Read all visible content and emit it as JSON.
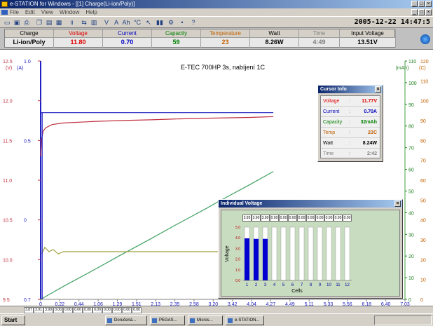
{
  "window": {
    "title": "e-STATION for Windows - [[1] Charge(Li-ion/Poly)]",
    "menu": [
      "File",
      "Edit",
      "View",
      "Window",
      "Help"
    ]
  },
  "toolbar": {
    "datetime": "2005-12-22 14:47:5"
  },
  "status": {
    "columns": [
      {
        "header": "Charge",
        "value": "Li-ion/Poly",
        "color": "#000000"
      },
      {
        "header": "Voltage",
        "value": "11.80",
        "color": "#e00000"
      },
      {
        "header": "Current",
        "value": "0.70",
        "color": "#0000c0"
      },
      {
        "header": "Capacity",
        "value": "59",
        "color": "#008000"
      },
      {
        "header": "Temperature",
        "value": "23",
        "color": "#c06000"
      },
      {
        "header": "Watt",
        "value": "8.26W",
        "color": "#000000"
      },
      {
        "header": "Time",
        "value": "4:49",
        "color": "#808080"
      },
      {
        "header": "Input Voltage",
        "value": "13.51V",
        "color": "#000000"
      }
    ]
  },
  "chart": {
    "title": "E-TEC 700HP 3s, nabíjení 1C",
    "left_unit_v": "(V)",
    "left_unit_a": "(A)",
    "right_unit_mah": "(mAh)",
    "right_unit_c": "(C)"
  },
  "chart_data": {
    "type": "line",
    "x_ticks": [
      "0",
      "0.22",
      "0.44",
      "1.06",
      "1.29",
      "1.51",
      "2.13",
      "2.35",
      "2.58",
      "3.20",
      "3.42",
      "4.04",
      "4.27",
      "4.49",
      "5.11",
      "5.33",
      "5.56",
      "6.18",
      "6.40",
      "7.03"
    ],
    "y_voltage_ticks": [
      "9.5",
      "10.0",
      "10.5",
      "11.0",
      "11.5",
      "12.0",
      "12.5"
    ],
    "y_voltage_range": [
      9.5,
      12.5
    ],
    "y_current_ticks": [
      "0.7",
      "0",
      "0.5",
      "1.0"
    ],
    "y_mah_ticks": [
      "0",
      "10",
      "20",
      "30",
      "40",
      "50",
      "60",
      "70",
      "80",
      "90",
      "100",
      "110"
    ],
    "y_mah_range": [
      0,
      110
    ],
    "y_temp_ticks": [
      "0",
      "10",
      "20",
      "30",
      "40",
      "50",
      "60",
      "70",
      "80",
      "90",
      "100",
      "110",
      "120"
    ],
    "series": [
      {
        "color": "#c03040",
        "x": [
          0,
          0.02,
          0.05,
          0.1,
          0.22,
          0.44,
          1.06,
          1.51,
          2.13,
          2.58,
          3.2,
          4.04,
          4.49
        ],
        "y": [
          11.3,
          11.52,
          11.62,
          11.66,
          11.7,
          11.72,
          11.74,
          11.75,
          11.76,
          11.77,
          11.78,
          11.79,
          11.8
        ]
      },
      {
        "color": "#2020c0",
        "x": [
          0,
          0.03,
          4.49
        ],
        "y": [
          0.7,
          0.7,
          0.7
        ]
      },
      {
        "color": "#40a060",
        "x": [
          0,
          0.22,
          0.44,
          1.06,
          1.51,
          2.13,
          2.58,
          3.2,
          3.42,
          4.04,
          4.49
        ],
        "y": [
          0,
          3,
          6,
          14,
          20,
          28,
          34,
          42,
          45,
          53,
          59
        ]
      },
      {
        "color": "#a0a040",
        "x": [
          0.02,
          0.08,
          0.16,
          0.24,
          0.34,
          0.44,
          0.7,
          1.06,
          1.51,
          2.13,
          2.58,
          3.2,
          4.04,
          4.49
        ],
        "y": [
          21,
          24,
          22,
          23,
          21,
          22,
          22,
          22,
          22,
          22,
          22,
          22,
          22,
          22
        ]
      }
    ]
  },
  "cursor_info": {
    "title": "Cursor Info",
    "rows": [
      {
        "label": "Voltage",
        "value": "11.77V",
        "color": "#e00000"
      },
      {
        "label": "Current",
        "value": "0.70A",
        "color": "#0000c0"
      },
      {
        "label": "Capacity",
        "value": "32mAh",
        "color": "#008000"
      },
      {
        "label": "Temp",
        "value": "23C",
        "color": "#c06000"
      },
      {
        "label": "Watt",
        "value": "8.24W",
        "color": "#000000"
      },
      {
        "label": "Time",
        "value": "2:42",
        "color": "#808080"
      }
    ]
  },
  "individual_voltage": {
    "title": "Individual Voltage",
    "ylabel": "Voltage",
    "xlabel": "Cells",
    "y_ticks": [
      "0.0",
      "1.0",
      "2.0",
      "3.0",
      "4.0",
      "5.0"
    ],
    "cell_labels": [
      "1",
      "2",
      "3",
      "4",
      "5",
      "6",
      "7",
      "8",
      "9",
      "10",
      "11",
      "12"
    ],
    "cell_values_text": [
      "3.95",
      "3.90",
      "3.90",
      "0.00",
      "0.00",
      "0.00",
      "0.00",
      "0.00",
      "0.00",
      "0.00",
      "0.00",
      "0.00"
    ],
    "cell_values": [
      3.95,
      3.9,
      3.9,
      0,
      0,
      0,
      0,
      0,
      0,
      0,
      0,
      0
    ]
  },
  "bottom_strip": [
    "3.87",
    "3.91",
    "3.90",
    "0.00",
    "0.00",
    "0.00",
    "0.00",
    "0.00",
    "0.00",
    "0.00",
    "0.00",
    "0.00"
  ],
  "taskbar": {
    "start": "Start",
    "items": [
      "Doručená...",
      "PEGAS...",
      "Micros...",
      "e-STATION..."
    ]
  }
}
